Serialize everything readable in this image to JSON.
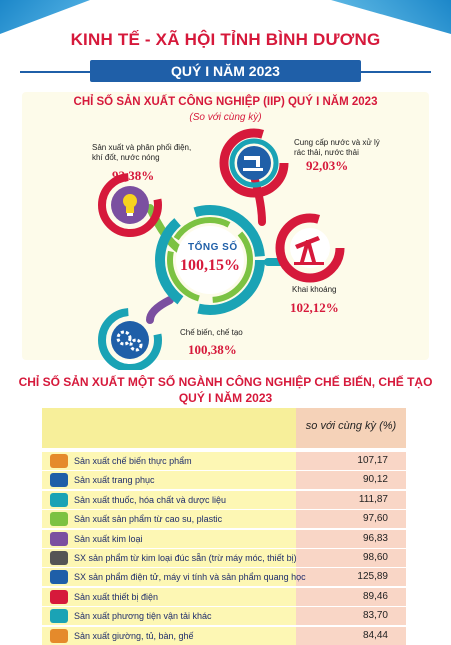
{
  "header": {
    "title": "KINH TẾ - XÃ HỘI TỈNH BÌNH DƯƠNG",
    "subtitle": "QUÝ I NĂM 2023"
  },
  "iip": {
    "title": "CHỈ SỐ SẢN XUẤT CÔNG NGHIỆP (IIP) QUÝ I NĂM 2023",
    "subtitle": "(So với cùng kỳ)",
    "total_label": "TỔNG SỐ",
    "total_value": "100,15%",
    "items": [
      {
        "label_line1": "Sản xuất và phân phối điện,",
        "label_line2": "khí đốt, nước nóng",
        "value": "92,38%",
        "icon": "lightbulb-icon"
      },
      {
        "label_line1": "Cung cấp nước và xử lý",
        "label_line2": "rác thải, nước thải",
        "value": "92,03%",
        "icon": "water-tap-icon"
      },
      {
        "label_line1": "Khai khoáng",
        "label_line2": "",
        "value": "102,12%",
        "icon": "oil-pump-icon"
      },
      {
        "label_line1": "Chế biến, chế tạo",
        "label_line2": "",
        "value": "100,38%",
        "icon": "gears-icon"
      }
    ],
    "colors": {
      "teal": "#1aa3b5",
      "green": "#7cc242",
      "red": "#d6193b",
      "purple": "#7b4fa0",
      "blue": "#1f5fa8"
    }
  },
  "chart_data": {
    "type": "table",
    "title": "CHỈ SỐ SẢN XUẤT MỘT SỐ NGÀNH CÔNG NGHIỆP CHẾ BIẾN, CHẾ TẠO QUÝ I NĂM 2023",
    "title_line1": "CHỈ SỐ SẢN XUẤT MỘT SỐ NGÀNH CÔNG NGHIỆP CHẾ BIẾN, CHẾ TẠO",
    "title_line2": "QUÝ I NĂM 2023",
    "column_header": "so với cùng kỳ (%)",
    "categories": [
      "Sản xuất chế biến thực phẩm",
      "Sản xuất trang phục",
      "Sản xuất thuốc, hóa chất và dược liệu",
      "Sản xuất sản phẩm từ cao su, plastic",
      "Sản xuất kim loại",
      "SX sản phẩm từ kim loại đúc sẵn (trừ máy móc, thiết bị)",
      "SX sản phẩm điện tử, máy vi tính và sản phẩm quang học",
      "Sản xuất thiết bị điện",
      "Sản xuất phương tiện vận tải khác",
      "Sản xuất giường, tủ, bàn, ghế"
    ],
    "values": [
      "107,17",
      "90,12",
      "111,87",
      "97,60",
      "96,83",
      "98,60",
      "125,89",
      "89,46",
      "83,70",
      "84,44"
    ],
    "icons": [
      "food-icon",
      "clothing-icon",
      "pharma-icon",
      "rubber-icon",
      "metal-icon",
      "cast-metal-icon",
      "electronics-icon",
      "electrical-icon",
      "transport-icon",
      "furniture-icon"
    ]
  }
}
